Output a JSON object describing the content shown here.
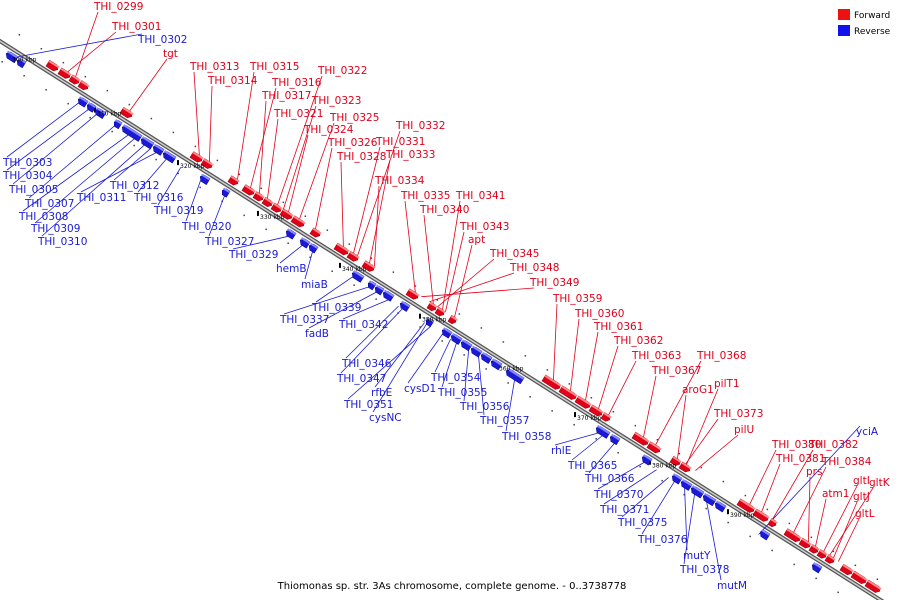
{
  "caption": "Thiomonas sp. str. 3As chromosome, complete genome. - 0..3738778",
  "legend": [
    {
      "label": "Forward",
      "color": "#ee1111"
    },
    {
      "label": "Reverse",
      "color": "#1111ee"
    }
  ],
  "colors": {
    "forward": "#e0001a",
    "reverse": "#1a1ad6",
    "backbone": "#777777"
  },
  "scale_labels": [
    "300 kbp",
    "310 kbp",
    "320 kbp",
    "330 kbp",
    "340 kbp",
    "350 kbp",
    "360 kbp",
    "370 kbp",
    "380 kbp",
    "390 kbp"
  ],
  "forward_labels": [
    "THI_0299",
    "THI_0301",
    "tgt",
    "THI_0313",
    "THI_0314",
    "THI_0315",
    "THI_0316",
    "THI_0317",
    "THI_0321",
    "THI_0322",
    "THI_0323",
    "THI_0324",
    "THI_0325",
    "THI_0326",
    "THI_0328",
    "THI_0331",
    "THI_0332",
    "THI_0333",
    "THI_0334",
    "THI_0335",
    "THI_0340",
    "THI_0341",
    "THI_0343",
    "apt",
    "THI_0345",
    "THI_0348",
    "THI_0349",
    "THI_0359",
    "THI_0360",
    "THI_0361",
    "THI_0362",
    "THI_0363",
    "THI_0367",
    "THI_0368",
    "aroG1",
    "pilT1",
    "THI_0373",
    "pilU",
    "THI_0380",
    "THI_0381",
    "THI_0382",
    "THI_0384",
    "prs",
    "atm1",
    "gltI",
    "gltK",
    "gltJ",
    "gltL"
  ],
  "reverse_labels": [
    "THI_0302",
    "THI_0303",
    "THI_0304",
    "THI_0305",
    "THI_0307",
    "THI_0308",
    "THI_0309",
    "THI_0310",
    "THI_0311",
    "THI_0312",
    "THI_0316",
    "THI_0319",
    "THI_0320",
    "THI_0327",
    "THI_0329",
    "hemB",
    "miaB",
    "THI_0339",
    "THI_0337",
    "fadB",
    "THI_0342",
    "THI_0346",
    "THI_0347",
    "rfbE",
    "THI_0351",
    "cysNC",
    "cysD1",
    "THI_0354",
    "THI_0355",
    "THI_0356",
    "THI_0357",
    "THI_0358",
    "rhlE",
    "THI_0365",
    "THI_0366",
    "THI_0370",
    "THI_0371",
    "THI_0375",
    "THI_0376",
    "mutY",
    "THI_0378",
    "mutM",
    "yciA"
  ]
}
